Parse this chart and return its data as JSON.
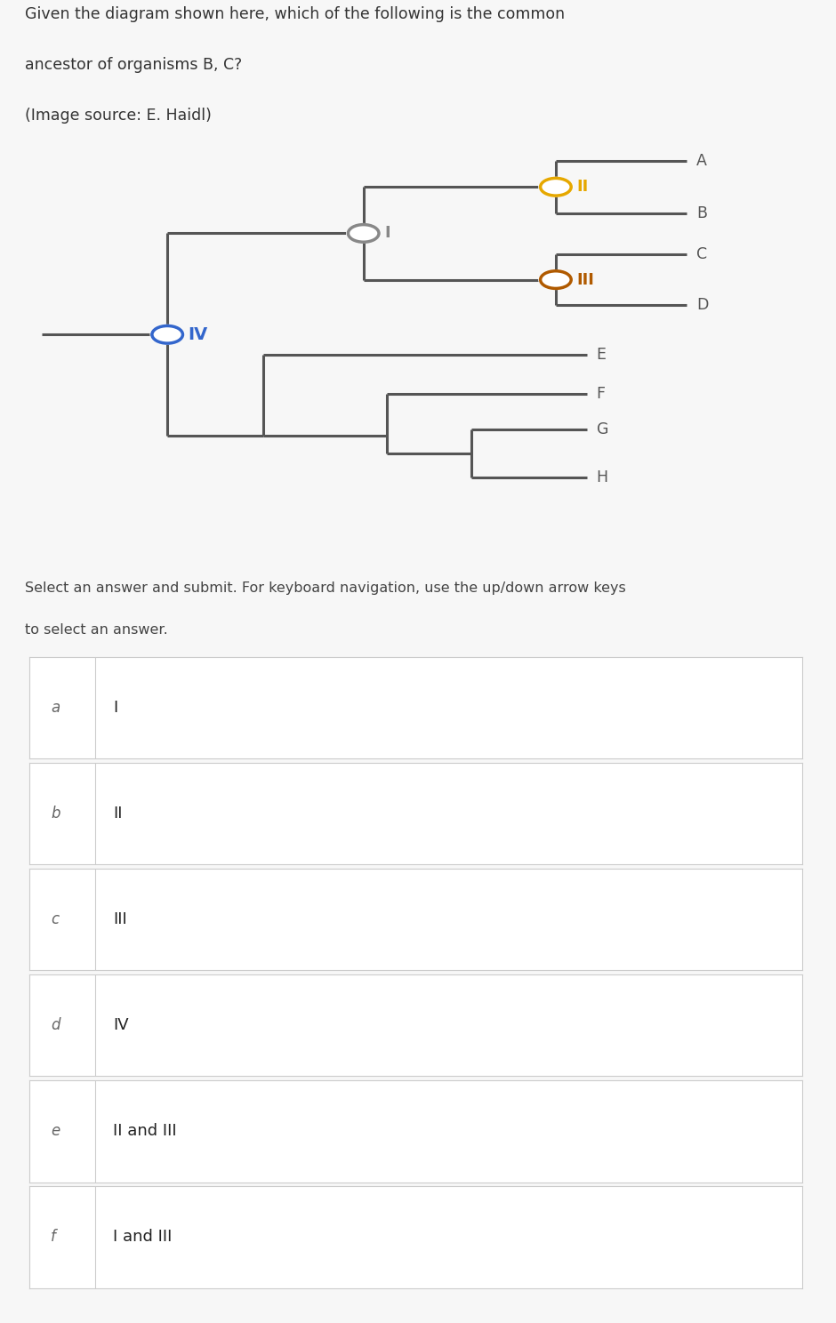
{
  "title_line1": "Given the diagram shown here, which of the following is the common",
  "title_line2": "ancestor of organisms B, C?",
  "title_line3": "(Image source: E. Haidl)",
  "title_color": "#333333",
  "bg_color": "#f7f7f7",
  "tree_color": "#555555",
  "node_I_color": "#888888",
  "node_II_color": "#e6a800",
  "node_III_color": "#b05a00",
  "node_IV_color": "#3366cc",
  "line_width": 2.2,
  "choices": [
    {
      "key": "a",
      "label": "I"
    },
    {
      "key": "b",
      "label": "II"
    },
    {
      "key": "c",
      "label": "III"
    },
    {
      "key": "d",
      "label": "IV"
    },
    {
      "key": "e",
      "label": "II and III"
    },
    {
      "key": "f",
      "label": "I and III"
    }
  ],
  "choice_box_color": "#ffffff",
  "choice_border_color": "#cccccc",
  "choice_key_color": "#666666",
  "choice_label_color": "#222222"
}
